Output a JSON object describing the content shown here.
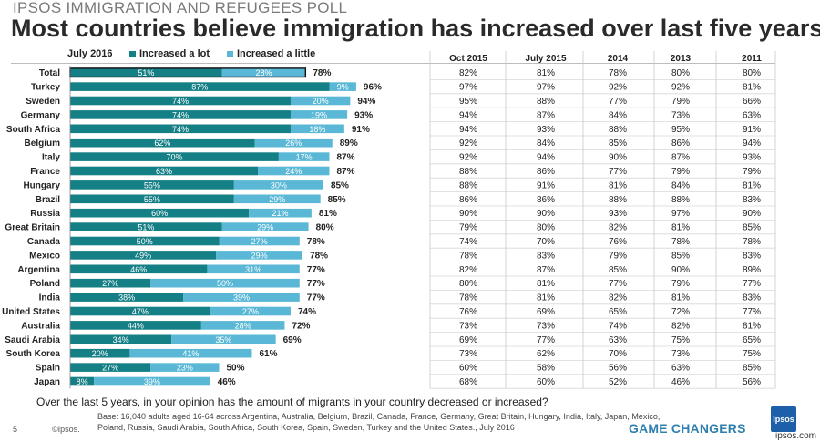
{
  "header": {
    "supertitle": "IPSOS IMMIGRATION AND REFUGEES POLL",
    "title": "Most countries believe immigration has increased over last five years"
  },
  "chart_data": {
    "type": "bar",
    "stacked": true,
    "orientation": "horizontal",
    "period_label": "July 2016",
    "value_suffix": "%",
    "xlim": [
      0,
      100
    ],
    "series": [
      {
        "name": "Increased a lot",
        "color": "#157f86"
      },
      {
        "name": "Increased a little",
        "color": "#5ab8d6"
      }
    ],
    "history_columns": [
      "Oct 2015",
      "July 2015",
      "2014",
      "2013",
      "2011"
    ],
    "rows": [
      {
        "country": "Total",
        "lot": 51,
        "little": 28,
        "total": 78,
        "history": [
          "82%",
          "81%",
          "78%",
          "80%",
          "80%"
        ]
      },
      {
        "country": "Turkey",
        "lot": 87,
        "little": 9,
        "total": 96,
        "history": [
          "97%",
          "97%",
          "92%",
          "92%",
          "81%"
        ]
      },
      {
        "country": "Sweden",
        "lot": 74,
        "little": 20,
        "total": 94,
        "history": [
          "95%",
          "88%",
          "77%",
          "79%",
          "66%"
        ]
      },
      {
        "country": "Germany",
        "lot": 74,
        "little": 19,
        "total": 93,
        "history": [
          "94%",
          "87%",
          "84%",
          "73%",
          "63%"
        ]
      },
      {
        "country": "South Africa",
        "lot": 74,
        "little": 18,
        "total": 91,
        "history": [
          "94%",
          "93%",
          "88%",
          "95%",
          "91%"
        ]
      },
      {
        "country": "Belgium",
        "lot": 62,
        "little": 26,
        "total": 89,
        "history": [
          "92%",
          "84%",
          "85%",
          "86%",
          "94%"
        ]
      },
      {
        "country": "Italy",
        "lot": 70,
        "little": 17,
        "total": 87,
        "history": [
          "92%",
          "94%",
          "90%",
          "87%",
          "93%"
        ]
      },
      {
        "country": "France",
        "lot": 63,
        "little": 24,
        "total": 87,
        "history": [
          "88%",
          "86%",
          "77%",
          "79%",
          "79%"
        ]
      },
      {
        "country": "Hungary",
        "lot": 55,
        "little": 30,
        "total": 85,
        "history": [
          "88%",
          "91%",
          "81%",
          "84%",
          "81%"
        ]
      },
      {
        "country": "Brazil",
        "lot": 55,
        "little": 29,
        "total": 85,
        "history": [
          "86%",
          "86%",
          "88%",
          "88%",
          "83%"
        ]
      },
      {
        "country": "Russia",
        "lot": 60,
        "little": 21,
        "total": 81,
        "history": [
          "90%",
          "90%",
          "93%",
          "97%",
          "90%"
        ]
      },
      {
        "country": "Great Britain",
        "lot": 51,
        "little": 29,
        "total": 80,
        "history": [
          "79%",
          "80%",
          "82%",
          "81%",
          "85%"
        ]
      },
      {
        "country": "Canada",
        "lot": 50,
        "little": 27,
        "total": 78,
        "history": [
          "74%",
          "70%",
          "76%",
          "78%",
          "78%"
        ]
      },
      {
        "country": "Mexico",
        "lot": 49,
        "little": 29,
        "total": 78,
        "history": [
          "78%",
          "83%",
          "79%",
          "85%",
          "83%"
        ]
      },
      {
        "country": "Argentina",
        "lot": 46,
        "little": 31,
        "total": 77,
        "history": [
          "82%",
          "87%",
          "85%",
          "90%",
          "89%"
        ]
      },
      {
        "country": "Poland",
        "lot": 27,
        "little": 50,
        "total": 77,
        "history": [
          "80%",
          "81%",
          "77%",
          "79%",
          "77%"
        ]
      },
      {
        "country": "India",
        "lot": 38,
        "little": 39,
        "total": 77,
        "history": [
          "78%",
          "81%",
          "82%",
          "81%",
          "83%"
        ]
      },
      {
        "country": "United States",
        "lot": 47,
        "little": 27,
        "total": 74,
        "history": [
          "76%",
          "69%",
          "65%",
          "72%",
          "77%"
        ]
      },
      {
        "country": "Australia",
        "lot": 44,
        "little": 28,
        "total": 72,
        "history": [
          "73%",
          "73%",
          "74%",
          "82%",
          "81%"
        ]
      },
      {
        "country": "Saudi Arabia",
        "lot": 34,
        "little": 35,
        "total": 69,
        "history": [
          "69%",
          "77%",
          "63%",
          "75%",
          "65%"
        ]
      },
      {
        "country": "South Korea",
        "lot": 20,
        "little": 41,
        "total": 61,
        "history": [
          "73%",
          "62%",
          "70%",
          "73%",
          "75%"
        ]
      },
      {
        "country": "Spain",
        "lot": 27,
        "little": 23,
        "total": 50,
        "history": [
          "60%",
          "58%",
          "56%",
          "63%",
          "85%"
        ]
      },
      {
        "country": "Japan",
        "lot": 8,
        "little": 39,
        "total": 46,
        "history": [
          "68%",
          "60%",
          "52%",
          "46%",
          "56%"
        ]
      }
    ]
  },
  "footer": {
    "question": "Over the last 5 years, in your opinion has the amount of migrants in your country decreased or increased?",
    "base_note": "Base: 16,040 adults aged 16-64 across  Argentina, Australia, Belgium, Brazil, Canada, France, Germany, Great Britain, Hungary, India, Italy, Japan, Mexico, Poland, Russia, Saudi Arabia, South Africa, South Korea, Spain, Sweden, Turkey and the United States., July 2016",
    "page_number": "5",
    "copyright": "©Ipsos.",
    "tagline": "GAME CHANGERS",
    "logo_text": "Ipsos",
    "watermark": "ipsos.com"
  }
}
